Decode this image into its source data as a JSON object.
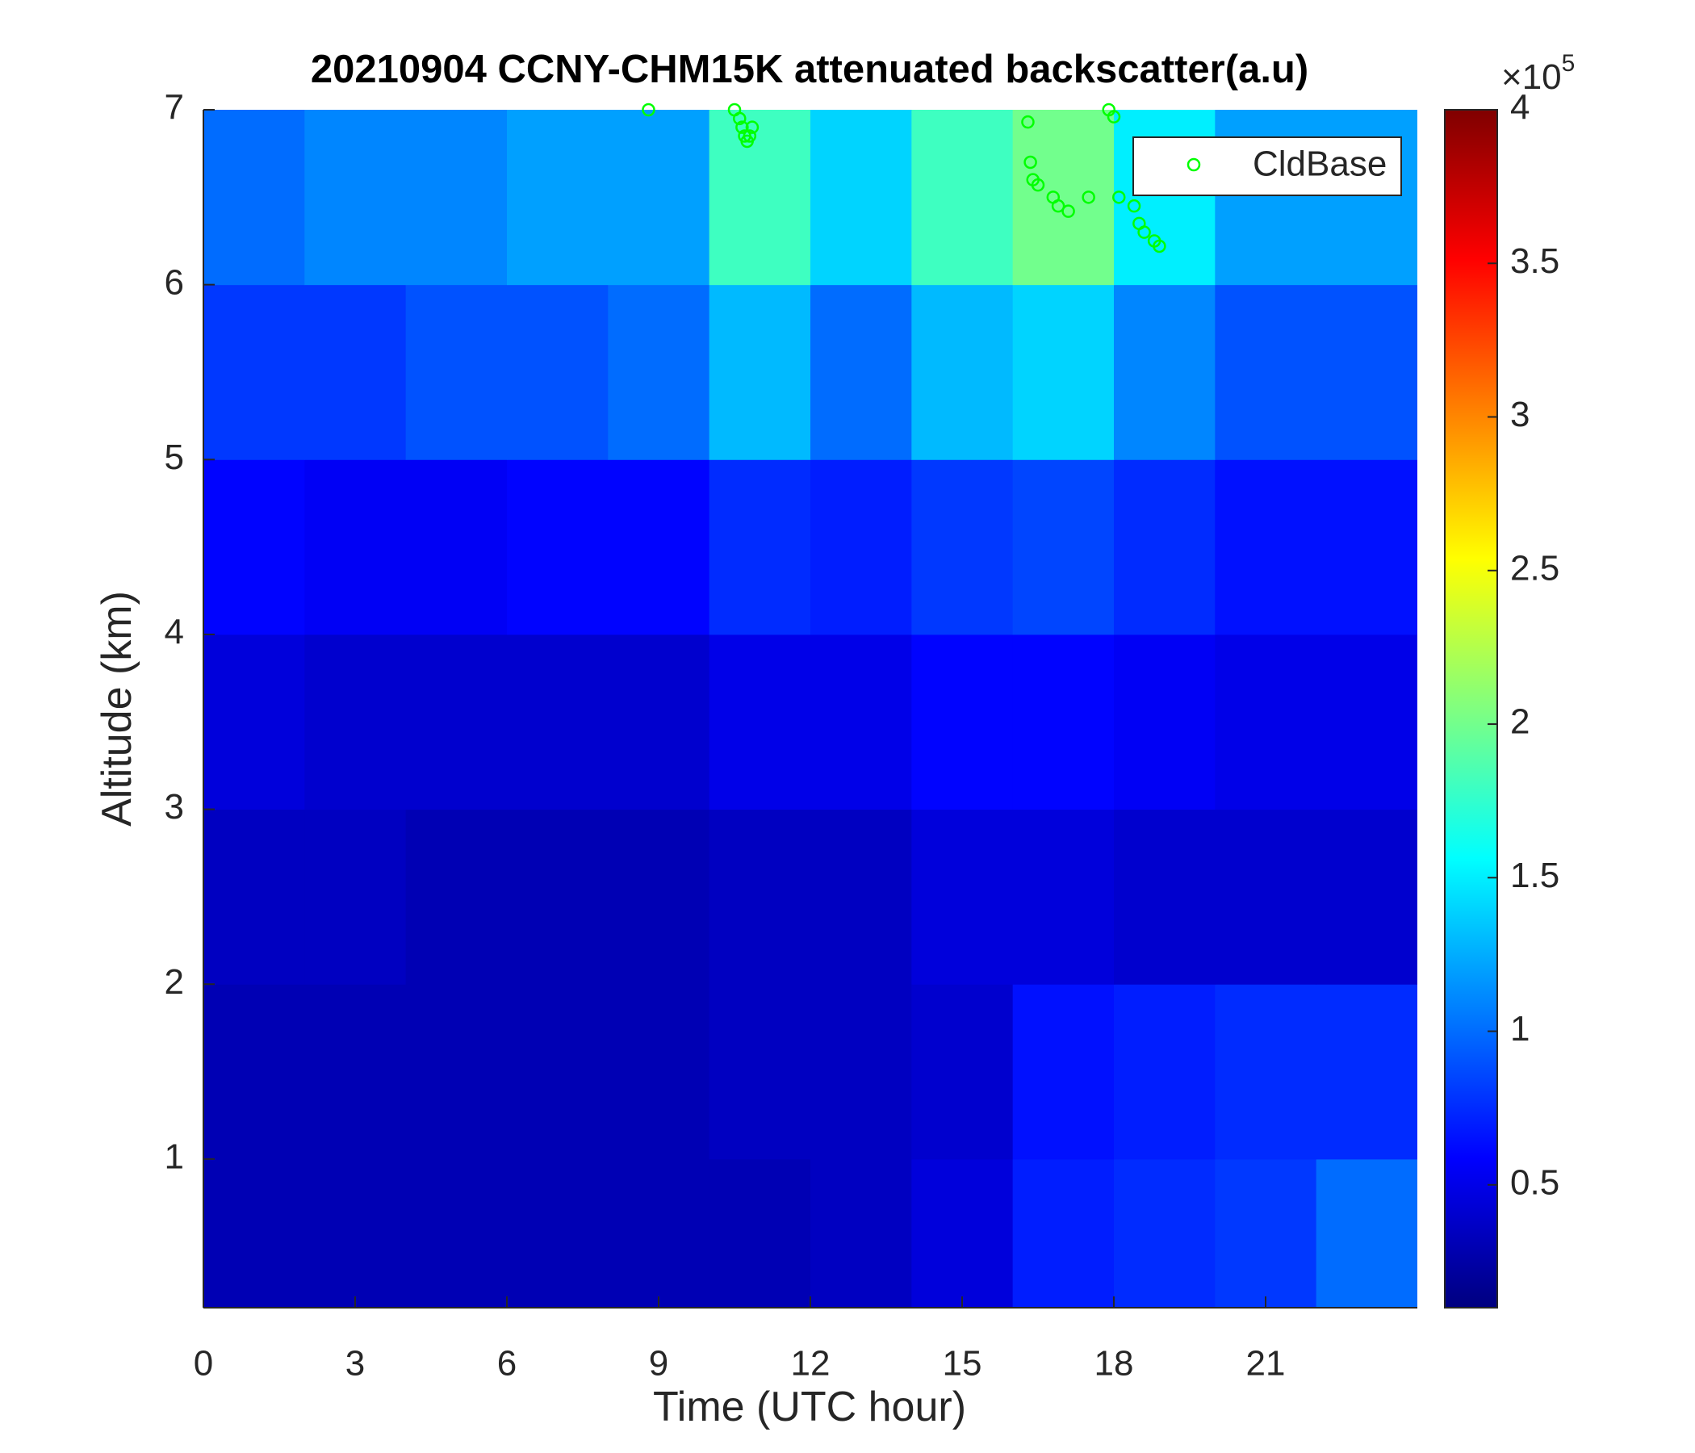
{
  "chart_data": {
    "type": "heatmap",
    "title": "20210904 CCNY-CHM15K attenuated backscatter(a.u)",
    "xlabel": "Time (UTC hour)",
    "ylabel": "Altitude (km)",
    "xlim": [
      0,
      24
    ],
    "xticks": [
      0,
      3,
      6,
      9,
      12,
      15,
      18,
      21
    ],
    "ylim": [
      0.15,
      7
    ],
    "yticks": [
      1,
      2,
      3,
      4,
      5,
      6,
      7
    ],
    "colormap": "jet",
    "clim": [
      0.1,
      4
    ],
    "cticks": [
      0.5,
      1,
      1.5,
      2,
      2.5,
      3,
      3.5,
      4
    ],
    "colorbar_multiplier": "×10",
    "colorbar_exponent": "5",
    "x": [
      1,
      3,
      5,
      7,
      9,
      11,
      13,
      15,
      17,
      19,
      21,
      23
    ],
    "y": [
      0.5,
      1.5,
      2.5,
      3.5,
      4.5,
      5.5,
      6.5
    ],
    "values": [
      [
        0.3,
        0.3,
        0.3,
        0.3,
        0.3,
        0.3,
        0.35,
        0.45,
        0.7,
        0.75,
        0.8,
        1.0
      ],
      [
        0.3,
        0.3,
        0.3,
        0.3,
        0.3,
        0.35,
        0.35,
        0.4,
        0.65,
        0.7,
        0.75,
        0.75
      ],
      [
        0.35,
        0.35,
        0.3,
        0.3,
        0.3,
        0.35,
        0.35,
        0.45,
        0.45,
        0.4,
        0.4,
        0.4
      ],
      [
        0.45,
        0.4,
        0.4,
        0.4,
        0.4,
        0.5,
        0.5,
        0.6,
        0.6,
        0.55,
        0.5,
        0.5
      ],
      [
        0.6,
        0.55,
        0.55,
        0.6,
        0.6,
        0.75,
        0.7,
        0.8,
        0.85,
        0.75,
        0.65,
        0.65
      ],
      [
        0.8,
        0.8,
        0.9,
        0.9,
        1.0,
        1.3,
        1.0,
        1.3,
        1.4,
        1.1,
        0.9,
        0.9
      ],
      [
        1.0,
        1.1,
        1.1,
        1.2,
        1.2,
        1.8,
        1.4,
        1.8,
        2.0,
        1.5,
        1.2,
        1.2
      ]
    ],
    "series": [
      {
        "name": "CldBase",
        "color": "#00ff00",
        "x": [
          8.8,
          10.5,
          10.6,
          10.65,
          10.7,
          10.75,
          10.8,
          10.85,
          16.3,
          16.35,
          16.4,
          16.5,
          16.8,
          16.9,
          17.1,
          17.5,
          17.9,
          18.0,
          18.1,
          18.4,
          18.5,
          18.6,
          18.8,
          18.9
        ],
        "y": [
          7.0,
          7.0,
          6.95,
          6.9,
          6.85,
          6.82,
          6.85,
          6.9,
          6.93,
          6.7,
          6.6,
          6.57,
          6.5,
          6.45,
          6.42,
          6.5,
          7.0,
          6.96,
          6.5,
          6.45,
          6.35,
          6.3,
          6.25,
          6.22
        ]
      }
    ],
    "legend": "northeast"
  }
}
